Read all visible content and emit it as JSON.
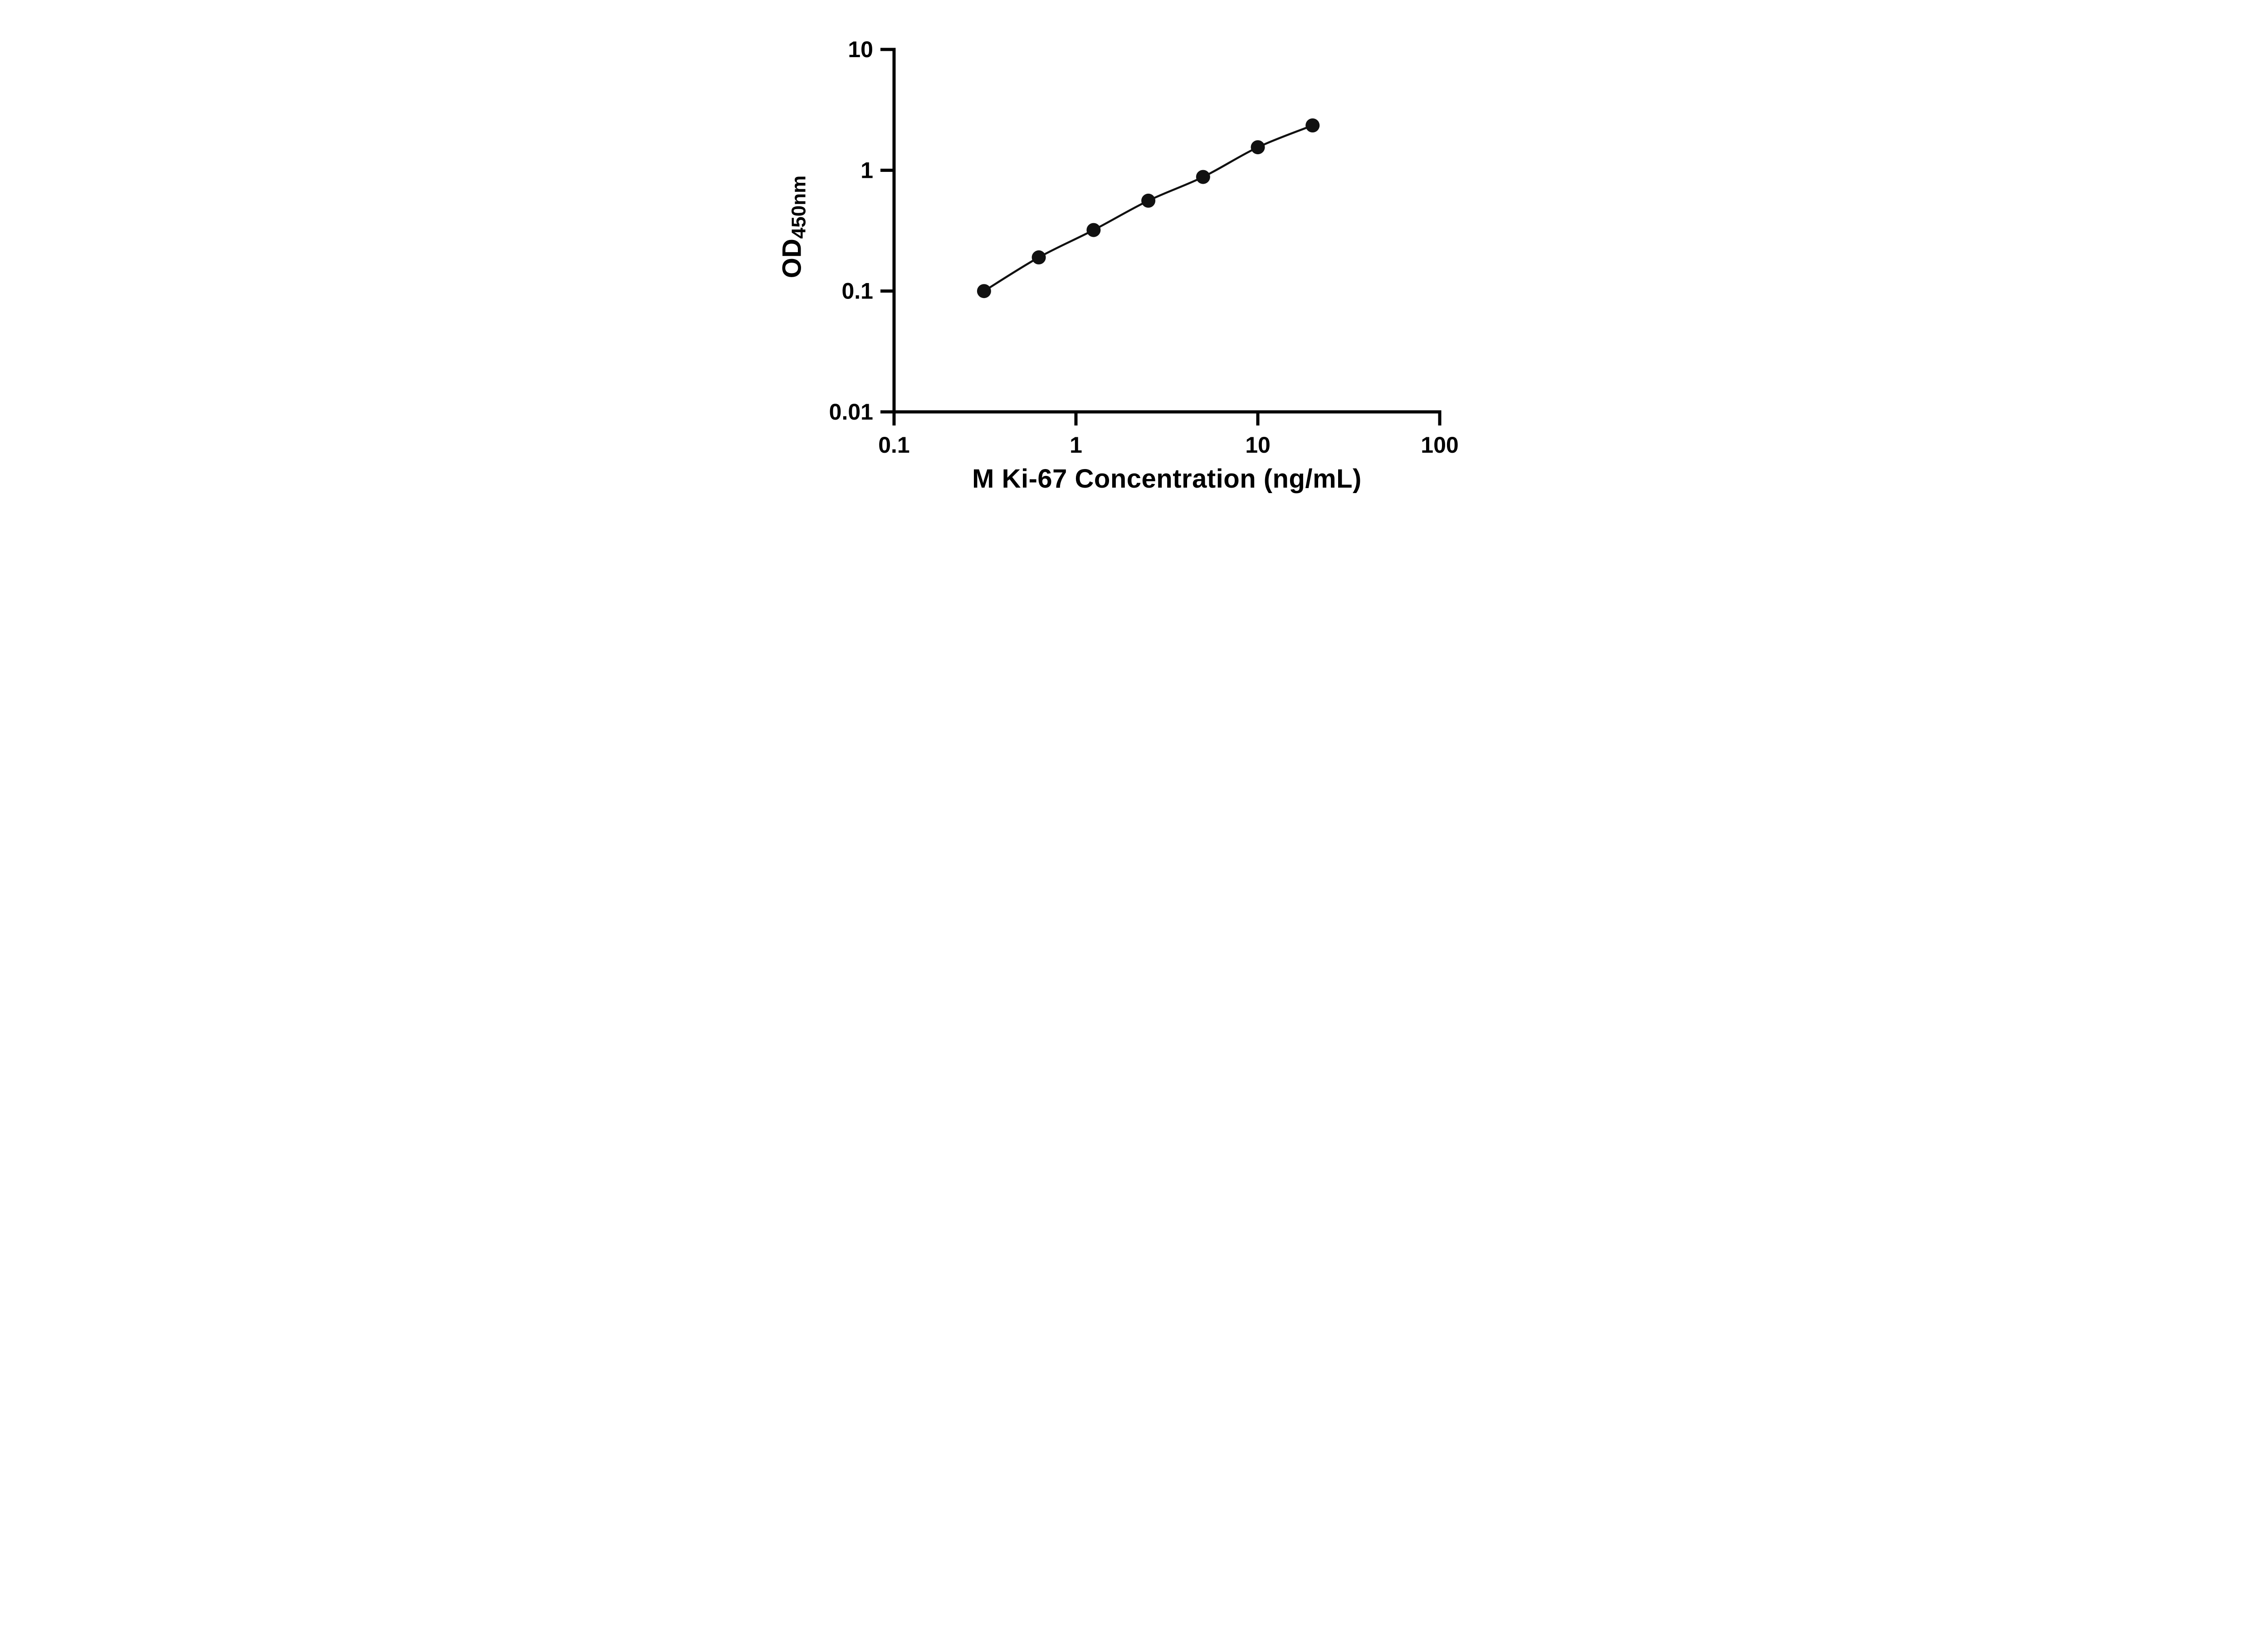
{
  "chart_data": {
    "type": "scatter",
    "title": "",
    "xlabel": "M Ki-67 Concentration (ng/mL)",
    "ylabel_main": "OD",
    "ylabel_sub": "450nm",
    "x_scale": "log",
    "y_scale": "log",
    "xlim": [
      0.1,
      100
    ],
    "ylim": [
      0.01,
      10
    ],
    "x_ticks": [
      0.1,
      1,
      10,
      100
    ],
    "x_tick_labels": [
      "0.1",
      "1",
      "10",
      "100"
    ],
    "y_ticks": [
      0.01,
      0.1,
      1,
      10
    ],
    "y_tick_labels": [
      "0.01",
      "0.1",
      "1",
      "10"
    ],
    "x": [
      0.3125,
      0.625,
      1.25,
      2.5,
      5,
      10,
      20
    ],
    "y": [
      0.1,
      0.19,
      0.32,
      0.56,
      0.88,
      1.55,
      2.35
    ],
    "grid": false,
    "legend": "none",
    "marker_shape": "circle",
    "marker_color": "#111111",
    "line_color": "#111111",
    "axis_color": "#000000",
    "background": "#ffffff"
  }
}
